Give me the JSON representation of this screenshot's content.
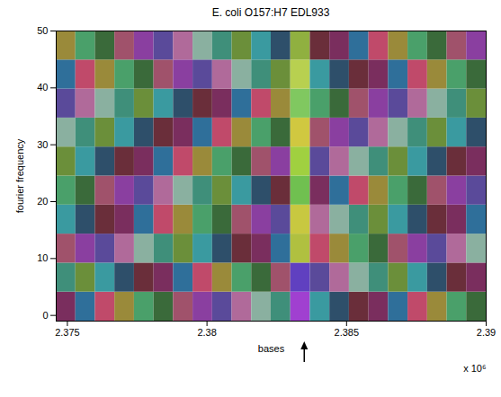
{
  "chart_data": {
    "type": "heatmap",
    "title": "E. coli O157:H7 EDL933",
    "xlabel": "bases",
    "ylabel": "fourier frequency",
    "x_multiplier": "x 10⁶",
    "xlim": [
      2374600,
      2390000
    ],
    "ylim": [
      -1,
      50
    ],
    "xticks": [
      {
        "value": 2375000,
        "label": "2.375"
      },
      {
        "value": 2380000,
        "label": "2.38"
      },
      {
        "value": 2385000,
        "label": "2.385"
      },
      {
        "value": 2390000,
        "label": "2.39"
      }
    ],
    "yticks": [
      0,
      10,
      20,
      30,
      40,
      50
    ],
    "arrow": {
      "x": 2383500
    },
    "x_edges": [
      2374600,
      2375300,
      2376000,
      2376700,
      2377400,
      2378100,
      2378800,
      2379500,
      2380200,
      2380900,
      2381600,
      2382300,
      2383000,
      2383700,
      2384400,
      2385100,
      2385800,
      2386500,
      2387200,
      2387900,
      2388600,
      2389300,
      2390000
    ],
    "y_edges": [
      -1,
      4.1,
      9.2,
      14.3,
      19.4,
      24.5,
      29.6,
      34.7,
      39.8,
      44.9,
      50
    ],
    "cells": [
      [
        "#7a2e5e",
        "#2f6f9a",
        "#c04a6a",
        "#9a8a3a",
        "#4aa06a",
        "#3a6a3a",
        "#a0526b",
        "#8a3fa0",
        "#5a4a9a",
        "#b06a9a",
        "#8ab0a0",
        "#3f8f7a",
        "#a040d0",
        "#3a9aa0",
        "#2e4f6a",
        "#6a2e3a",
        "#7a2e5e",
        "#2f6f9a",
        "#c04a6a",
        "#9a8a3a",
        "#4aa06a",
        "#3a6a3a"
      ],
      [
        "#3f8f7a",
        "#6b8f3a",
        "#3a9aa0",
        "#2e4f6a",
        "#6a2e3a",
        "#7a2e5e",
        "#2f6f9a",
        "#c04a6a",
        "#9a8a3a",
        "#4aa06a",
        "#3a6a3a",
        "#a0526b",
        "#6040c0",
        "#5a4a9a",
        "#b06a9a",
        "#8ab0a0",
        "#3f8f7a",
        "#6b8f3a",
        "#3a9aa0",
        "#2e4f6a",
        "#6a2e3a",
        "#7a2e5e"
      ],
      [
        "#a0526b",
        "#8a3fa0",
        "#5a4a9a",
        "#b06a9a",
        "#8ab0a0",
        "#3f8f7a",
        "#6b8f3a",
        "#3a9aa0",
        "#2e4f6a",
        "#6a2e3a",
        "#7a2e5e",
        "#2f6f9a",
        "#b0c040",
        "#c04a6a",
        "#9a8a3a",
        "#4aa06a",
        "#3a6a3a",
        "#a0526b",
        "#8a3fa0",
        "#5a4a9a",
        "#b06a9a",
        "#8ab0a0"
      ],
      [
        "#3a9aa0",
        "#2e4f6a",
        "#6a2e3a",
        "#7a2e5e",
        "#2f6f9a",
        "#c04a6a",
        "#9a8a3a",
        "#4aa06a",
        "#3a6a3a",
        "#a0526b",
        "#8a3fa0",
        "#5a4a9a",
        "#c8c840",
        "#b06a9a",
        "#8ab0a0",
        "#3f8f7a",
        "#6b8f3a",
        "#3a9aa0",
        "#2e4f6a",
        "#6a2e3a",
        "#7a2e5e",
        "#2f6f9a"
      ],
      [
        "#4aa06a",
        "#3a6a3a",
        "#a0526b",
        "#8a3fa0",
        "#5a4a9a",
        "#b06a9a",
        "#8ab0a0",
        "#3f8f7a",
        "#6b8f3a",
        "#3a9aa0",
        "#2e4f6a",
        "#6a2e3a",
        "#70c050",
        "#7a2e5e",
        "#2f6f9a",
        "#c04a6a",
        "#9a8a3a",
        "#4aa06a",
        "#3a6a3a",
        "#a0526b",
        "#8a3fa0",
        "#5a4a9a"
      ],
      [
        "#6b8f3a",
        "#3a9aa0",
        "#2e4f6a",
        "#6a2e3a",
        "#7a2e5e",
        "#2f6f9a",
        "#c04a6a",
        "#9a8a3a",
        "#4aa06a",
        "#3a6a3a",
        "#a0526b",
        "#8a3fa0",
        "#a0d040",
        "#5a4a9a",
        "#b06a9a",
        "#8ab0a0",
        "#3f8f7a",
        "#6b8f3a",
        "#3a9aa0",
        "#2e4f6a",
        "#6a2e3a",
        "#7a2e5e"
      ],
      [
        "#8ab0a0",
        "#3f8f7a",
        "#6b8f3a",
        "#3a9aa0",
        "#2e4f6a",
        "#6a2e3a",
        "#7a2e5e",
        "#2f6f9a",
        "#c04a6a",
        "#9a8a3a",
        "#4aa06a",
        "#3a6a3a",
        "#d0c840",
        "#a0526b",
        "#8a3fa0",
        "#5a4a9a",
        "#b06a9a",
        "#8ab0a0",
        "#3f8f7a",
        "#6b8f3a",
        "#3a9aa0",
        "#2e4f6a"
      ],
      [
        "#5a4a9a",
        "#b06a9a",
        "#8ab0a0",
        "#3f8f7a",
        "#6b8f3a",
        "#3a9aa0",
        "#2e4f6a",
        "#6a2e3a",
        "#7a2e5e",
        "#2f6f9a",
        "#c04a6a",
        "#9a8a3a",
        "#80c860",
        "#4aa06a",
        "#3a6a3a",
        "#a0526b",
        "#8a3fa0",
        "#5a4a9a",
        "#b06a9a",
        "#8ab0a0",
        "#3f8f7a",
        "#6b8f3a"
      ],
      [
        "#2f6f9a",
        "#c04a6a",
        "#9a8a3a",
        "#4aa06a",
        "#3a6a3a",
        "#a0526b",
        "#8a3fa0",
        "#5a4a9a",
        "#b06a9a",
        "#8ab0a0",
        "#3f8f7a",
        "#6b8f3a",
        "#b8d050",
        "#3a9aa0",
        "#2e4f6a",
        "#6a2e3a",
        "#7a2e5e",
        "#2f6f9a",
        "#c04a6a",
        "#9a8a3a",
        "#4aa06a",
        "#3a6a3a"
      ],
      [
        "#9a8a3a",
        "#4aa06a",
        "#3a6a3a",
        "#a0526b",
        "#8a3fa0",
        "#5a4a9a",
        "#b06a9a",
        "#8ab0a0",
        "#3f8f7a",
        "#6b8f3a",
        "#3a9aa0",
        "#2e4f6a",
        "#90b040",
        "#6a2e3a",
        "#7a2e5e",
        "#2f6f9a",
        "#c04a6a",
        "#9a8a3a",
        "#4aa06a",
        "#3a6a3a",
        "#a0526b",
        "#8a3fa0"
      ]
    ]
  }
}
